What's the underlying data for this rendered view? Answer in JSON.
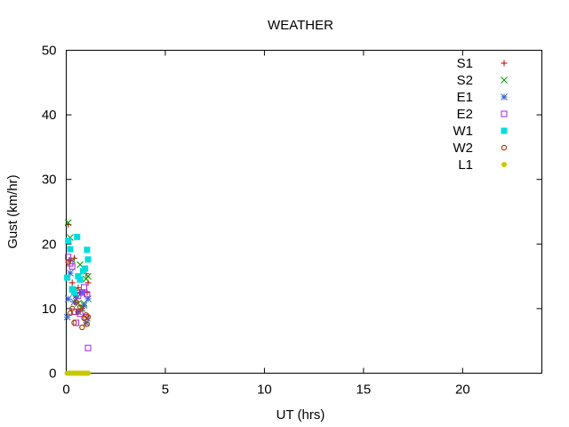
{
  "chart_data": {
    "type": "scatter",
    "title": "WEATHER",
    "xlabel": "UT (hrs)",
    "ylabel": "Gust (km/hr)",
    "xlim": [
      0,
      24
    ],
    "ylim": [
      0,
      50
    ],
    "xticks": [
      0,
      5,
      10,
      15,
      20
    ],
    "yticks": [
      0,
      10,
      20,
      30,
      40,
      50
    ],
    "grid": false,
    "legend_position": "top-right",
    "series": [
      {
        "name": "S1",
        "color": "#c00000",
        "marker": "plus",
        "points": [
          [
            0.1,
            23.0
          ],
          [
            0.15,
            17.5
          ],
          [
            0.3,
            14.0
          ],
          [
            0.4,
            17.8
          ],
          [
            0.5,
            11.0
          ],
          [
            0.6,
            13.2
          ],
          [
            0.7,
            12.5
          ],
          [
            0.8,
            10.0
          ],
          [
            0.9,
            16.0
          ],
          [
            1.0,
            15.4
          ],
          [
            1.05,
            12.5
          ],
          [
            1.1,
            14.0
          ]
        ]
      },
      {
        "name": "S2",
        "color": "#009900",
        "marker": "cross",
        "points": [
          [
            0.1,
            23.3
          ],
          [
            0.2,
            21.0
          ],
          [
            0.3,
            17.5
          ],
          [
            0.4,
            12.7
          ],
          [
            0.5,
            11.5
          ],
          [
            0.6,
            10.8
          ],
          [
            0.7,
            16.8
          ],
          [
            0.8,
            10.0
          ],
          [
            0.9,
            10.8
          ],
          [
            1.0,
            14.6
          ],
          [
            1.05,
            8.5
          ],
          [
            1.1,
            15.0
          ]
        ]
      },
      {
        "name": "E1",
        "color": "#3366cc",
        "marker": "asterisk",
        "points": [
          [
            0.05,
            8.7
          ],
          [
            0.1,
            11.5
          ],
          [
            0.2,
            15.5
          ],
          [
            0.3,
            13.0
          ],
          [
            0.4,
            11.0
          ],
          [
            0.5,
            12.0
          ],
          [
            0.6,
            9.5
          ],
          [
            0.7,
            14.5
          ],
          [
            0.8,
            12.5
          ],
          [
            0.9,
            10.5
          ],
          [
            1.0,
            7.8
          ],
          [
            1.1,
            11.5
          ]
        ]
      },
      {
        "name": "E2",
        "color": "#a020f0",
        "marker": "square-open",
        "points": [
          [
            0.1,
            18.0
          ],
          [
            0.2,
            17.0
          ],
          [
            0.3,
            16.5
          ],
          [
            0.4,
            9.5
          ],
          [
            0.5,
            7.8
          ],
          [
            0.6,
            12.0
          ],
          [
            0.7,
            9.2
          ],
          [
            0.8,
            12.5
          ],
          [
            0.9,
            13.3
          ],
          [
            1.0,
            8.7
          ],
          [
            1.05,
            12.2
          ],
          [
            1.1,
            3.9
          ]
        ]
      },
      {
        "name": "W1",
        "color": "#00dddd",
        "marker": "square-filled",
        "points": [
          [
            0.05,
            14.8
          ],
          [
            0.1,
            20.5
          ],
          [
            0.2,
            19.2
          ],
          [
            0.3,
            13.0
          ],
          [
            0.4,
            12.5
          ],
          [
            0.55,
            21.1
          ],
          [
            0.6,
            15.0
          ],
          [
            0.7,
            14.5
          ],
          [
            0.85,
            15.8
          ],
          [
            0.95,
            16.2
          ],
          [
            1.05,
            19.1
          ],
          [
            1.1,
            17.6
          ]
        ]
      },
      {
        "name": "W2",
        "color": "#b04000",
        "marker": "circle-open",
        "points": [
          [
            0.1,
            17.2
          ],
          [
            0.2,
            9.3
          ],
          [
            0.3,
            10.0
          ],
          [
            0.4,
            7.8
          ],
          [
            0.5,
            11.0
          ],
          [
            0.6,
            9.5
          ],
          [
            0.7,
            10.2
          ],
          [
            0.8,
            7.1
          ],
          [
            0.9,
            8.5
          ],
          [
            1.0,
            9.0
          ],
          [
            1.05,
            7.6
          ],
          [
            1.1,
            8.7
          ]
        ]
      },
      {
        "name": "L1",
        "color": "#c8c800",
        "marker": "circle-filled",
        "points": [
          [
            0.05,
            0
          ],
          [
            0.15,
            0
          ],
          [
            0.25,
            0
          ],
          [
            0.35,
            0
          ],
          [
            0.45,
            0
          ],
          [
            0.55,
            0
          ],
          [
            0.65,
            0
          ],
          [
            0.75,
            0
          ],
          [
            0.85,
            0
          ],
          [
            0.95,
            0
          ],
          [
            1.05,
            0
          ],
          [
            1.1,
            0
          ]
        ]
      }
    ]
  }
}
